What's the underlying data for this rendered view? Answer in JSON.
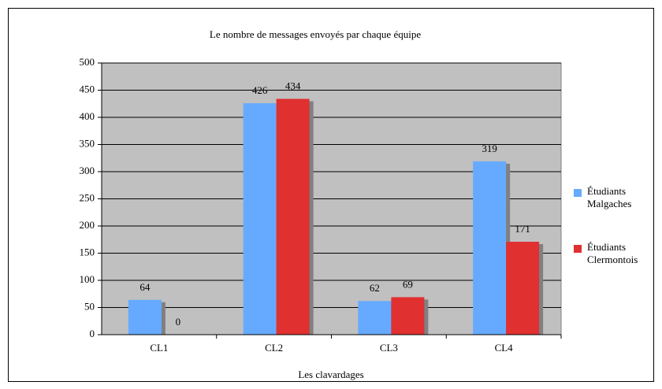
{
  "chart_data": {
    "type": "bar",
    "title": "Le nombre de messages envoyés par chaque équipe",
    "xlabel": "Les clavardages",
    "categories": [
      "CL1",
      "CL2",
      "CL3",
      "CL4"
    ],
    "series": [
      {
        "name": "Étudiants Malgaches",
        "color": "#66aaff",
        "values": [
          64,
          426,
          62,
          319
        ]
      },
      {
        "name": "Étudiants Clermontois",
        "color": "#e03030",
        "values": [
          0,
          434,
          69,
          171
        ]
      }
    ],
    "ylim": [
      0,
      500
    ],
    "yticks": [
      0,
      50,
      100,
      150,
      200,
      250,
      300,
      350,
      400,
      450,
      500
    ],
    "grid": true,
    "legend": "right"
  }
}
